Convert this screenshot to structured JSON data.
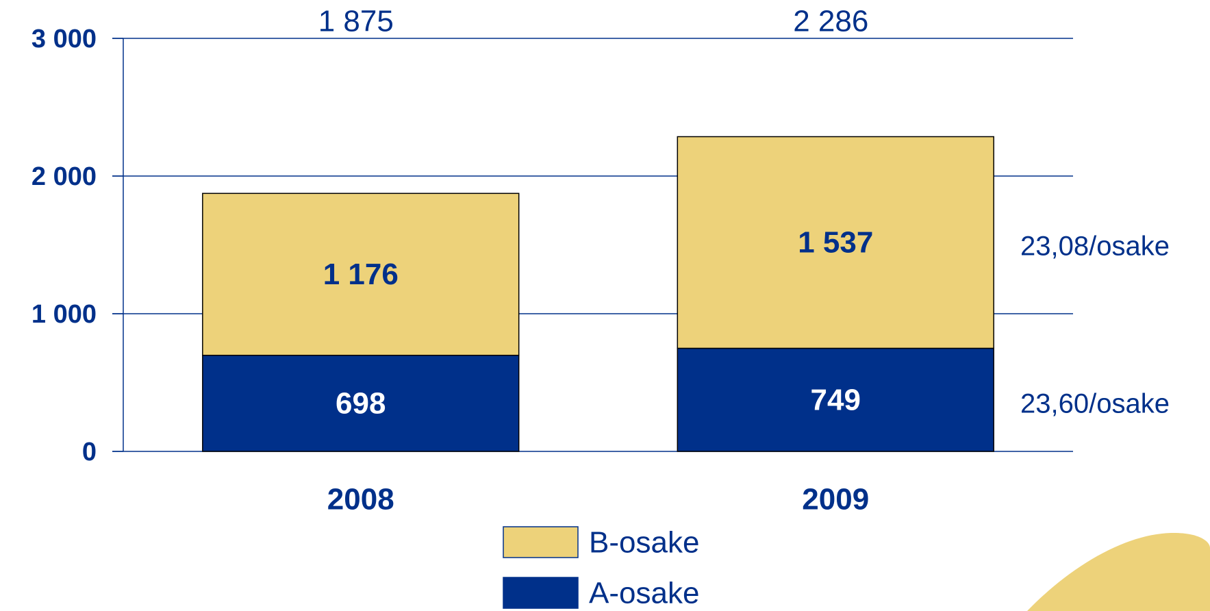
{
  "chart_data": {
    "type": "stacked-bar",
    "categories": [
      "2008",
      "2009"
    ],
    "series": [
      {
        "name": "A-osake",
        "color": "#00308a",
        "values": [
          698,
          749
        ],
        "label_color": "#ffffff"
      },
      {
        "name": "B-osake",
        "color": "#edd27a",
        "values": [
          1176,
          1537
        ],
        "value_labels": [
          "1 176",
          "1 537"
        ],
        "label_color": "#00308a"
      }
    ],
    "totals": [
      1875,
      2286
    ],
    "total_labels": [
      "1 875",
      "2 286"
    ],
    "annotations": [
      "23,60/osake",
      "23,08/osake"
    ],
    "ylim": [
      0,
      3000
    ],
    "yticks": [
      0,
      {
        "value": 1000,
        "label": "1 000"
      },
      {
        "value": 2000,
        "label": "2 000"
      },
      {
        "value": 3000,
        "label": "3 000"
      }
    ],
    "grid": true,
    "text_color": "#00308a"
  }
}
